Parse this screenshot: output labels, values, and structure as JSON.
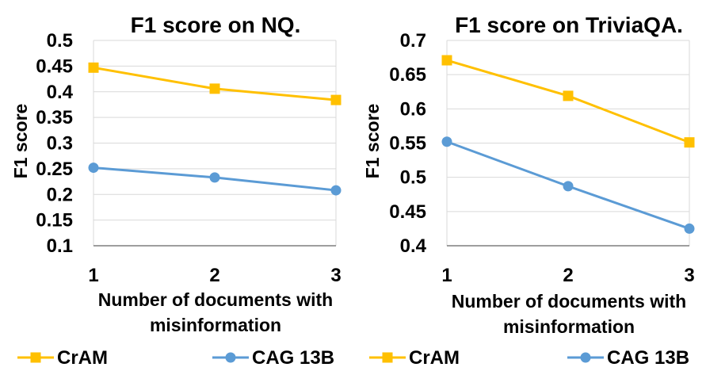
{
  "chart_data": [
    {
      "type": "line",
      "title": "F1 score on NQ.",
      "ylabel": "F1 score",
      "xlabel_lines": [
        "Number of documents with",
        "misinformation"
      ],
      "x": [
        1,
        2,
        3
      ],
      "ylim": [
        0.1,
        0.5
      ],
      "yticks": [
        "0.1",
        "0.15",
        "0.2",
        "0.25",
        "0.3",
        "0.35",
        "0.4",
        "0.45",
        "0.5"
      ],
      "grid": true,
      "legend_position": "bottom",
      "series": [
        {
          "name": "CrAM",
          "values": [
            0.447,
            0.406,
            0.384
          ],
          "color": "#FFC000",
          "marker": "square"
        },
        {
          "name": "CAG 13B",
          "values": [
            0.252,
            0.233,
            0.208
          ],
          "color": "#5B9BD5",
          "marker": "circle"
        }
      ]
    },
    {
      "type": "line",
      "title": "F1 score on TriviaQA.",
      "ylabel": "F1 score",
      "xlabel_lines": [
        "Number of documents with",
        "misinformation"
      ],
      "x": [
        1,
        2,
        3
      ],
      "ylim": [
        0.4,
        0.7
      ],
      "yticks": [
        "0.4",
        "0.45",
        "0.5",
        "0.55",
        "0.6",
        "0.65",
        "0.7"
      ],
      "grid": true,
      "legend_position": "bottom",
      "series": [
        {
          "name": "CrAM",
          "values": [
            0.671,
            0.619,
            0.551
          ],
          "color": "#FFC000",
          "marker": "square"
        },
        {
          "name": "CAG 13B",
          "values": [
            0.552,
            0.487,
            0.425
          ],
          "color": "#5B9BD5",
          "marker": "circle"
        }
      ]
    }
  ]
}
